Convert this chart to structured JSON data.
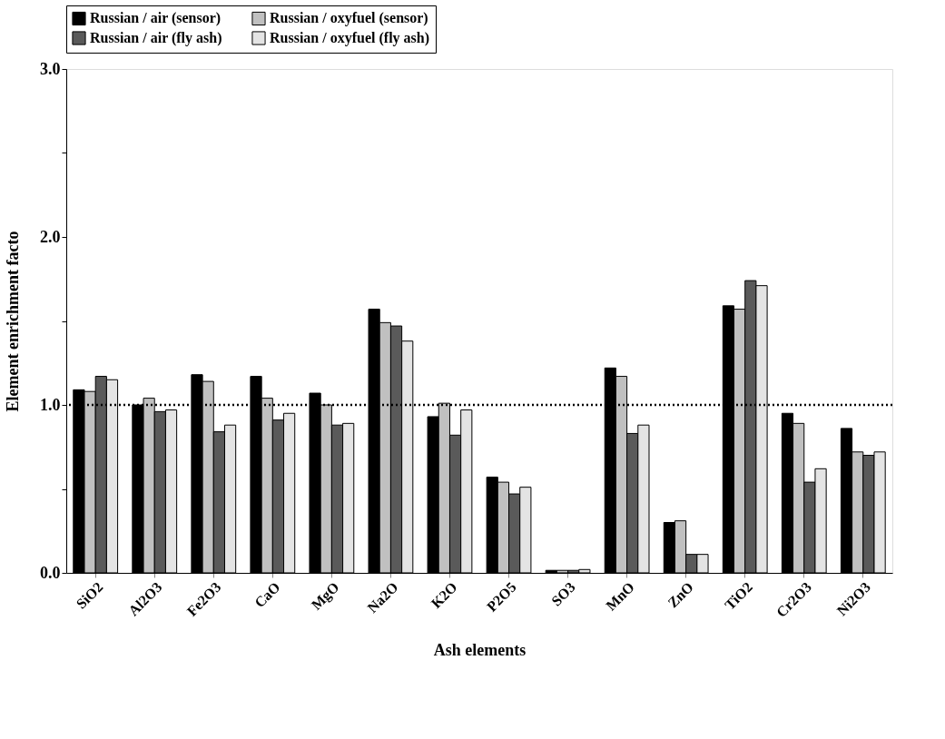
{
  "chart_data": {
    "type": "bar",
    "xlabel": "Ash elements",
    "ylabel": "Element enrichment facto",
    "categories": [
      "SiO2",
      "Al2O3",
      "Fe2O3",
      "CaO",
      "MgO",
      "Na2O",
      "K2O",
      "P2O5",
      "SO3",
      "MnO",
      "ZnO",
      "TiO2",
      "Cr2O3",
      "Ni2O3"
    ],
    "series": [
      {
        "name": "Russian / air (sensor)",
        "color": "#000000",
        "values": [
          1.09,
          1.0,
          1.18,
          1.17,
          1.07,
          1.57,
          0.93,
          0.57,
          0.015,
          1.22,
          0.3,
          1.59,
          0.95,
          0.86
        ]
      },
      {
        "name": "Russian / oxyfuel (sensor)",
        "color": "#c0c0c0",
        "values": [
          1.08,
          1.04,
          1.14,
          1.04,
          1.0,
          1.49,
          1.01,
          0.54,
          0.015,
          1.17,
          0.31,
          1.57,
          0.89,
          0.72
        ]
      },
      {
        "name": "Russian / air (fly ash)",
        "color": "#5a5a5a",
        "values": [
          1.17,
          0.96,
          0.84,
          0.91,
          0.88,
          1.47,
          0.82,
          0.47,
          0.015,
          0.83,
          0.11,
          1.74,
          0.54,
          0.7
        ]
      },
      {
        "name": "Russian / oxyfuel (fly ash)",
        "color": "#e4e4e4",
        "values": [
          1.15,
          0.97,
          0.88,
          0.95,
          0.89,
          1.38,
          0.97,
          0.51,
          0.02,
          0.88,
          0.11,
          1.71,
          0.62,
          0.72
        ]
      }
    ],
    "ylim": [
      0,
      3.0
    ],
    "yticks": [
      {
        "value": 0,
        "label": "0.0"
      },
      {
        "value": 0.5,
        "label": null
      },
      {
        "value": 1,
        "label": "1.0"
      },
      {
        "value": 1.5,
        "label": null
      },
      {
        "value": 2,
        "label": "2.0"
      },
      {
        "value": 2.5,
        "label": null
      },
      {
        "value": 3,
        "label": "3.0"
      }
    ],
    "ref_lines": [
      {
        "axis": "y",
        "value": 1.0,
        "line_style": "dotted",
        "color": "#000000"
      }
    ],
    "grid": false,
    "legend": "top"
  }
}
